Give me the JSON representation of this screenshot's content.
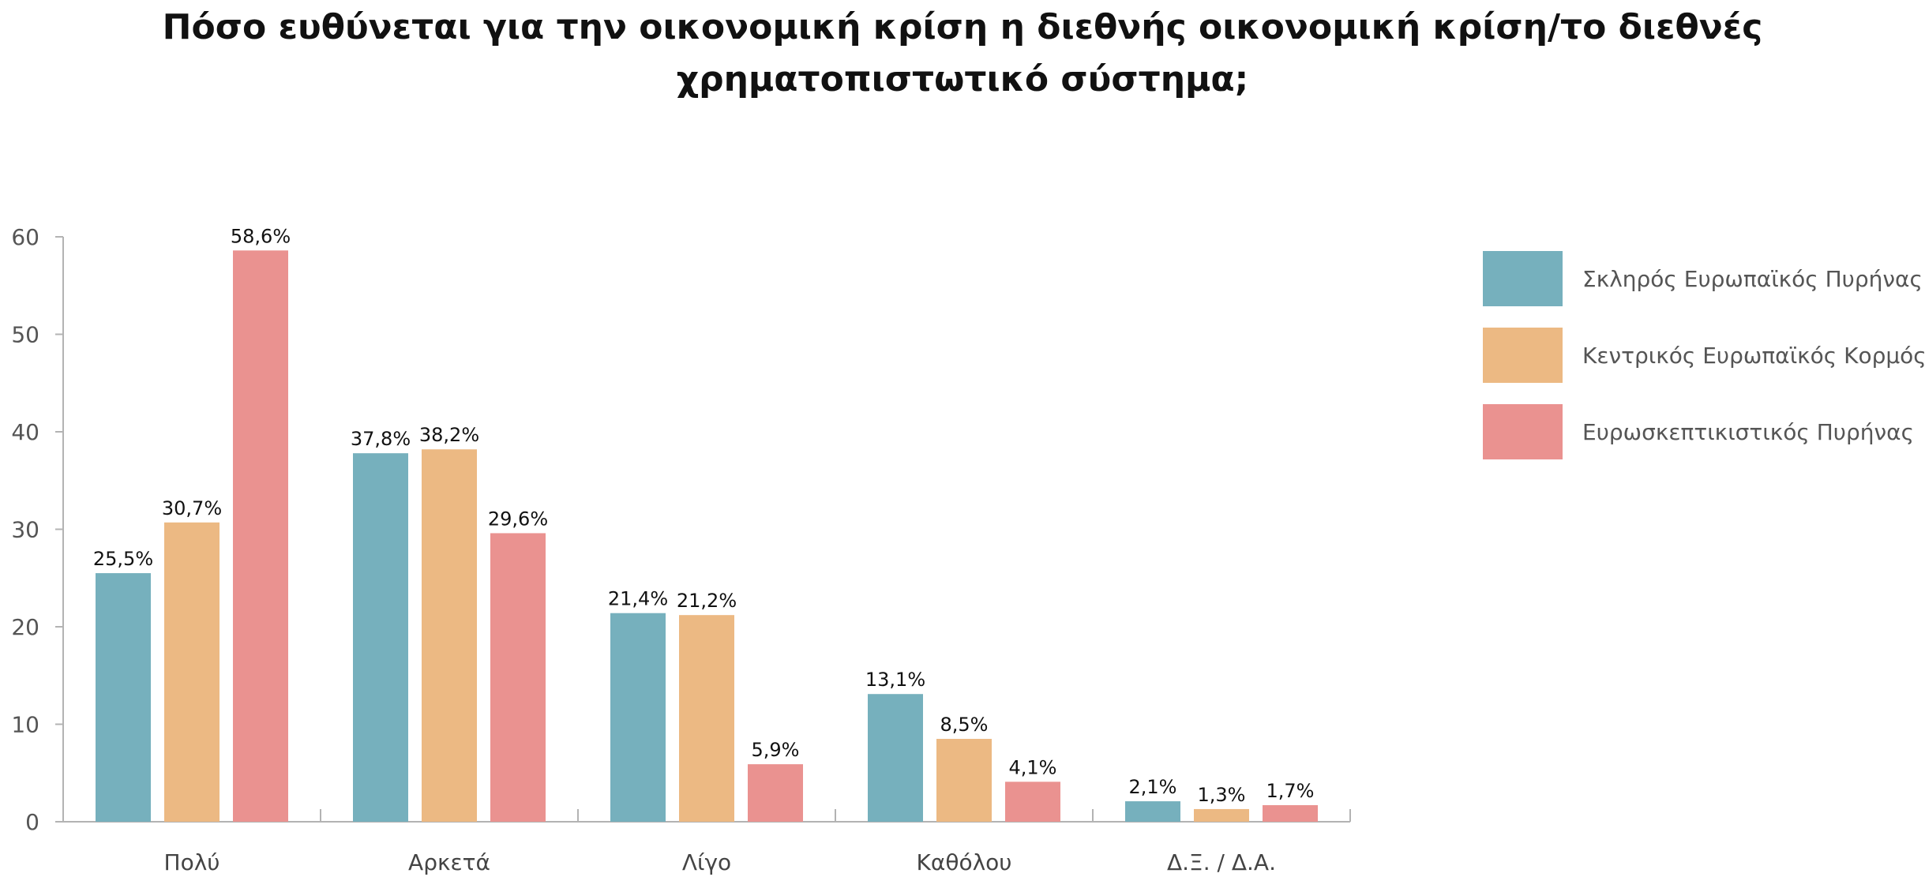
{
  "chart_data": {
    "type": "bar",
    "title": "Πόσο ευθύνεται για την οικονομική κρίση η διεθνής οικονομική κρίση/το διεθνές χρηματοπιστωτικό σύστημα;",
    "categories": [
      "Πολύ",
      "Αρκετά",
      "Λίγο",
      "Καθόλου",
      "Δ.Ξ. / Δ.Α."
    ],
    "series": [
      {
        "name": "Σκληρός Ευρωπαϊκός Πυρήνας",
        "color": "#76b0bd",
        "values": [
          25.5,
          37.8,
          21.4,
          13.1,
          2.1
        ],
        "labels": [
          "25,5%",
          "37,8%",
          "21,4%",
          "13,1%",
          "2,1%"
        ]
      },
      {
        "name": "Κεντρικός Ευρωπαϊκός Κορμός",
        "color": "#ecb983",
        "values": [
          30.7,
          38.2,
          21.2,
          8.5,
          1.3
        ],
        "labels": [
          "30,7%",
          "38,2%",
          "21,2%",
          "8,5%",
          "1,3%"
        ]
      },
      {
        "name": "Ευρωσκεπτικιστικός Πυρήνας",
        "color": "#ea9290",
        "values": [
          58.6,
          29.6,
          5.9,
          4.1,
          1.7
        ],
        "labels": [
          "58,6%",
          "29,6%",
          "5,9%",
          "4,1%",
          "1,7%"
        ]
      }
    ],
    "ylim": [
      0,
      60
    ],
    "yticks": [
      0,
      10,
      20,
      30,
      40,
      50,
      60
    ],
    "xlabel": "",
    "ylabel": "",
    "grid": false,
    "legend": "right"
  }
}
